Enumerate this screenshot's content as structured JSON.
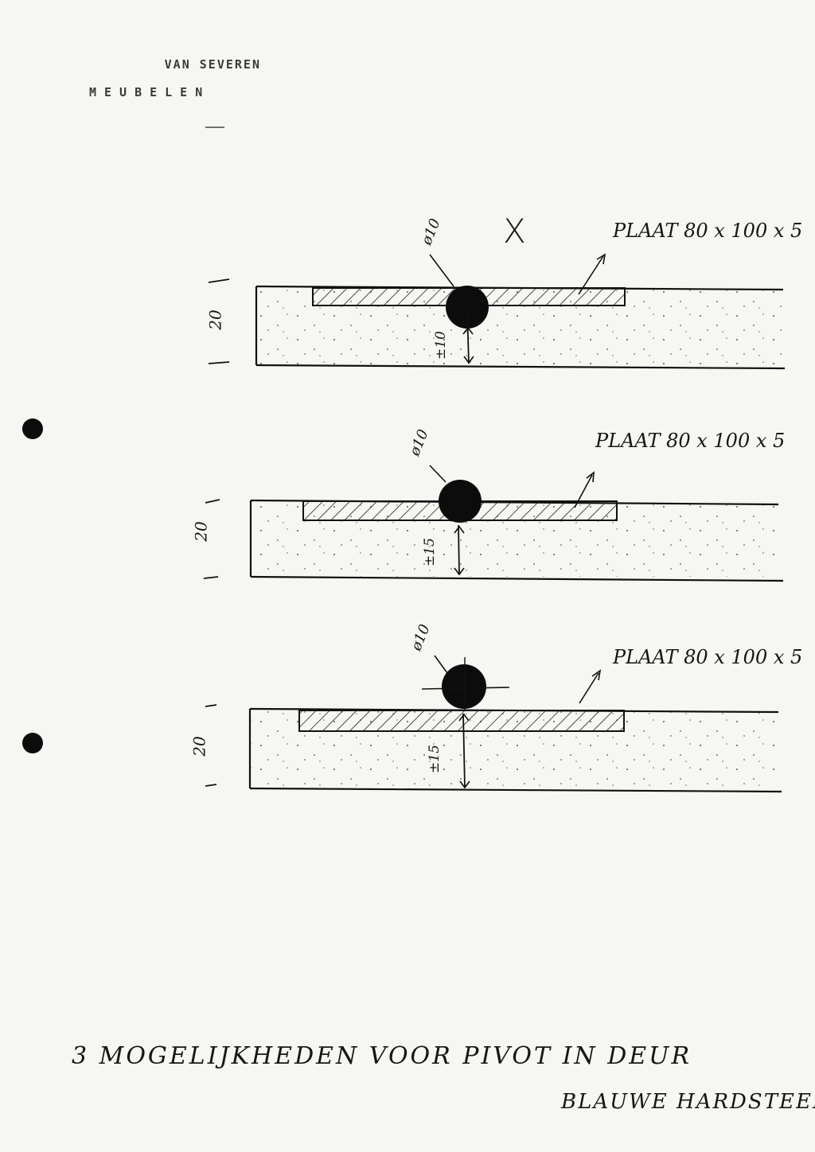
{
  "letterhead": {
    "line1": "VAN SEVEREN",
    "line2": "MEUBELEN"
  },
  "marks": {
    "crossed": "X"
  },
  "options": [
    {
      "plate": "PLAAT 80 x 100 x 5",
      "diameter": "ø10",
      "offset": "±10",
      "height": "20"
    },
    {
      "plate": "PLAAT 80 x 100 x 5",
      "diameter": "ø10",
      "offset": "±15",
      "height": "20"
    },
    {
      "plate": "PLAAT 80 x 100 x 5",
      "diameter": "ø10",
      "offset": "±15",
      "height": "20"
    }
  ],
  "caption": {
    "line1": "3 MOGELIJKHEDEN VOOR PIVOT IN DEUR",
    "line2": "BLAUWE HARDSTEEN."
  }
}
